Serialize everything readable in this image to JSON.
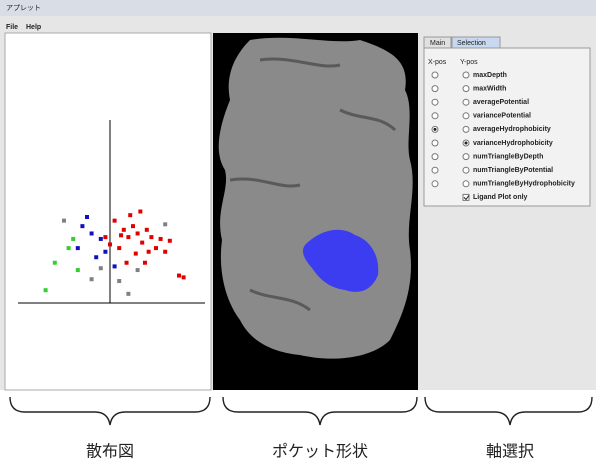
{
  "window": {
    "title": "アプレット",
    "menu": [
      "File",
      "Help"
    ]
  },
  "scatter": {
    "groups": [
      {
        "color": "#e00000",
        "points": [
          [
            0.15,
            0.4
          ],
          [
            0.2,
            0.36
          ],
          [
            0.25,
            0.42
          ],
          [
            0.3,
            0.38
          ],
          [
            0.35,
            0.33
          ],
          [
            0.4,
            0.4
          ],
          [
            0.45,
            0.36
          ],
          [
            0.5,
            0.3
          ],
          [
            0.55,
            0.35
          ],
          [
            0.6,
            0.28
          ],
          [
            0.1,
            0.3
          ],
          [
            0.05,
            0.45
          ],
          [
            0.28,
            0.27
          ],
          [
            0.38,
            0.22
          ],
          [
            0.18,
            0.22
          ],
          [
            0.22,
            0.48
          ],
          [
            0.33,
            0.5
          ],
          [
            0.65,
            0.34
          ],
          [
            0.75,
            0.15
          ],
          [
            0.8,
            0.14
          ],
          [
            0.12,
            0.37
          ],
          [
            0.42,
            0.28
          ],
          [
            -0.05,
            0.36
          ],
          [
            0.0,
            0.32
          ]
        ]
      },
      {
        "color": "#1010c0",
        "points": [
          [
            -0.3,
            0.42
          ],
          [
            -0.2,
            0.38
          ],
          [
            -0.1,
            0.35
          ],
          [
            -0.35,
            0.3
          ],
          [
            -0.15,
            0.25
          ],
          [
            0.05,
            0.2
          ],
          [
            -0.25,
            0.47
          ],
          [
            -0.05,
            0.28
          ]
        ]
      },
      {
        "color": "#30d030",
        "points": [
          [
            -0.6,
            0.22
          ],
          [
            -0.45,
            0.3
          ],
          [
            -0.35,
            0.18
          ],
          [
            -0.7,
            0.07
          ],
          [
            -0.4,
            0.35
          ]
        ]
      },
      {
        "color": "#808080",
        "points": [
          [
            -0.2,
            0.13
          ],
          [
            -0.1,
            0.19
          ],
          [
            0.1,
            0.12
          ],
          [
            0.3,
            0.18
          ],
          [
            0.6,
            0.43
          ],
          [
            -0.5,
            0.45
          ],
          [
            0.2,
            0.05
          ]
        ]
      }
    ]
  },
  "panel": {
    "tabs": [
      "Main",
      "Selection"
    ],
    "headers": [
      "X-pos",
      "Y-pos"
    ],
    "options": [
      "maxDepth",
      "maxWidth",
      "averagePotential",
      "variancePotential",
      "averageHydrophobicity",
      "varianceHydrophobicity",
      "numTriangleByDepth",
      "numTriangleByPotential",
      "numTriangleByHydrophobicity"
    ],
    "x_selected": 4,
    "y_selected": 5,
    "checkbox": {
      "label": "Ligand Plot only",
      "checked": true
    }
  },
  "captions": [
    "散布図",
    "ポケット形状",
    "軸選択"
  ]
}
